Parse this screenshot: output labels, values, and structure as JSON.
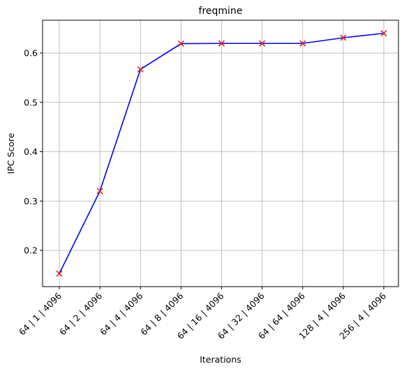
{
  "chart_data": {
    "type": "line",
    "title": "freqmine",
    "xlabel": "Iterations",
    "ylabel": "IPC Score",
    "categories": [
      "64 | 1 | 4096",
      "64 | 2 | 4096",
      "64 | 4 | 4096",
      "64 | 8 | 4096",
      "64 | 16 | 4096",
      "64 | 32 | 4096",
      "64 | 64 | 4096",
      "128 | 4 | 4096",
      "256 | 4 | 4096"
    ],
    "series": [
      {
        "values": [
          0.153,
          0.32,
          0.567,
          0.619,
          0.6195,
          0.6195,
          0.6195,
          0.631,
          0.64
        ],
        "line_color": "#0000ff",
        "marker": "x",
        "marker_color": "#d62728"
      }
    ],
    "yticks": [
      "0.2",
      "0.3",
      "0.4",
      "0.5",
      "0.6"
    ],
    "ylim": [
      0.1265,
      0.6665
    ],
    "grid": true,
    "legend": "none"
  }
}
